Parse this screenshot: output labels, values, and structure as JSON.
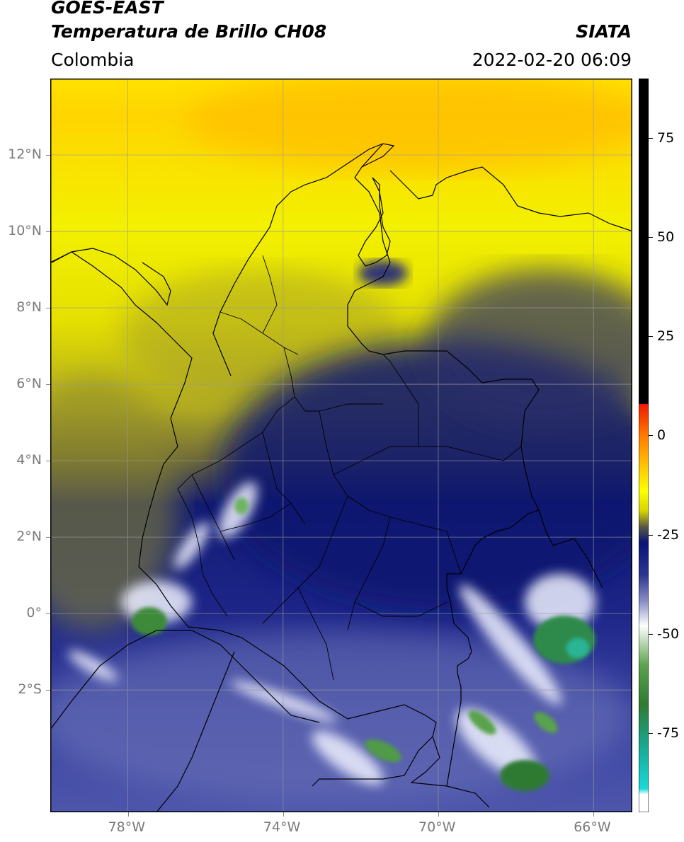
{
  "header": {
    "satellite": "GOES-EAST",
    "product": "Temperatura de Brillo CH08",
    "region": "Colombia",
    "agency": "SIATA",
    "datetime": "2022-02-20 06:09"
  },
  "map": {
    "lat_ticks": [
      "12°N",
      "10°N",
      "8°N",
      "6°N",
      "4°N",
      "2°N",
      "0°",
      "2°S"
    ],
    "lon_ticks": [
      "78°W",
      "74°W",
      "70°W",
      "66°W"
    ],
    "extent": {
      "lon": [
        -80,
        -65
      ],
      "lat": [
        -5.2,
        14
      ]
    }
  },
  "colorbar": {
    "ticks": [
      "75",
      "50",
      "25",
      "0",
      "-25",
      "-50",
      "-75"
    ],
    "range": [
      -95,
      90
    ],
    "stops": [
      {
        "v": 90,
        "c": "#000000"
      },
      {
        "v": 8,
        "c": "#000000"
      },
      {
        "v": 7.9,
        "c": "#ee1a00"
      },
      {
        "v": 0,
        "c": "#ff7a00"
      },
      {
        "v": -8,
        "c": "#ffc800"
      },
      {
        "v": -14,
        "c": "#ffff00"
      },
      {
        "v": -19,
        "c": "#d7d400"
      },
      {
        "v": -23,
        "c": "#5a5a45"
      },
      {
        "v": -27,
        "c": "#0a1378"
      },
      {
        "v": -35,
        "c": "#2a3490"
      },
      {
        "v": -42,
        "c": "#8c92c6"
      },
      {
        "v": -48,
        "c": "#ffffff"
      },
      {
        "v": -58,
        "c": "#5aa24c"
      },
      {
        "v": -68,
        "c": "#2e7a32"
      },
      {
        "v": -78,
        "c": "#18a88f"
      },
      {
        "v": -89,
        "c": "#19d8da"
      },
      {
        "v": -90.5,
        "c": "#ffffff"
      },
      {
        "v": -95,
        "c": "#ffffff"
      }
    ]
  }
}
